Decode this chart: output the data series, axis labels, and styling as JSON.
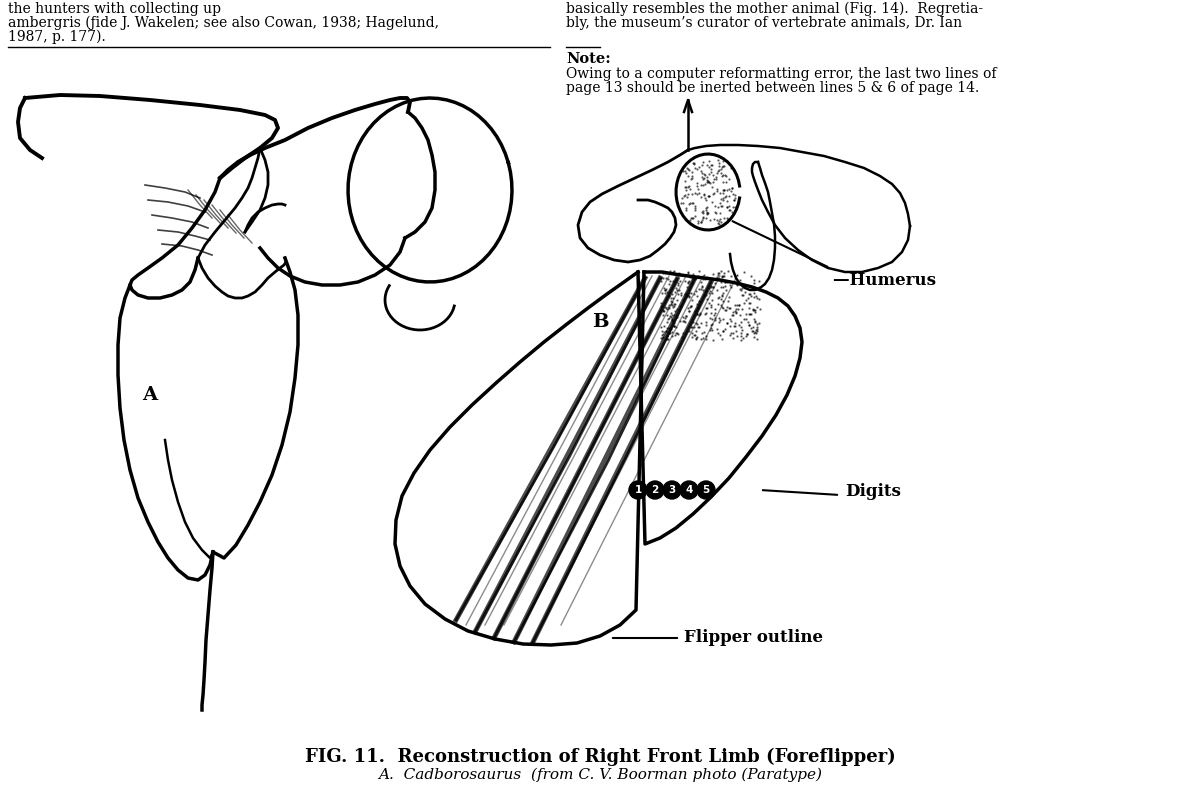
{
  "background_color": "#ffffff",
  "fig_width": 12.0,
  "fig_height": 8.06,
  "dpi": 100,
  "top_left_line1": "the hunters with collecting up",
  "top_left_line2": "ambergris (fide J. Wakelen; see also Cowan, 1938; Hagelund,",
  "top_left_line3": "1987, p. 177).",
  "top_right_line1": "basically resembles the mother animal (Fig. 14).  Regretia-",
  "top_right_line2": "bly, the museum’s curator of vertebrate animals, Dr. Ian",
  "note_bold": "Note:",
  "note_line1": "Owing to a computer reformatting error, the last two lines of",
  "note_line2": "page 13 should be inerted between lines 5 & 6 of page 14.",
  "label_A": "A",
  "label_B": "B",
  "label_humerus": "—Humerus",
  "label_digits": "Digits",
  "label_flipper": "Flipper outline",
  "caption_line1": "FIG. 11.  Reconstruction of Right Front Limb (Foreflipper)",
  "caption_line2": "A.  Cadborosaurus  (from C. V. Boorman photo (Paratype)",
  "text_color": "#000000"
}
